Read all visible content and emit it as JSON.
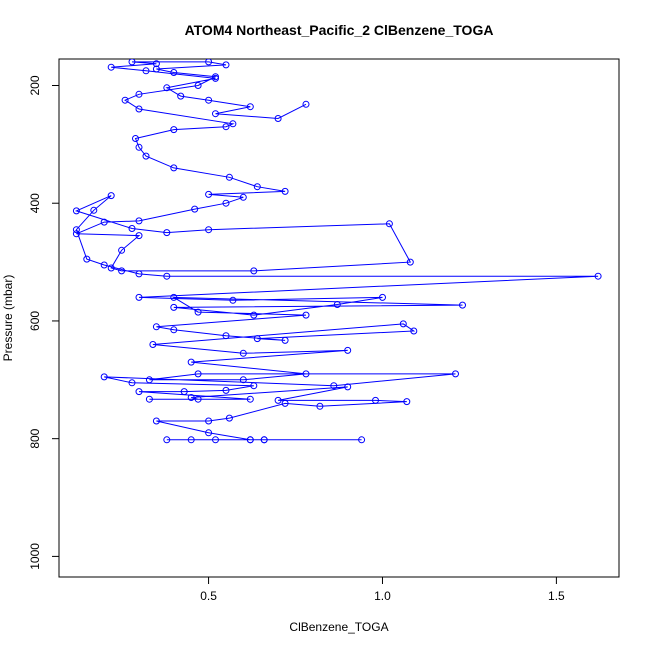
{
  "chart_data": {
    "type": "line",
    "title": "ATOM4 Northeast_Pacific_2 ClBenzene_TOGA",
    "xlabel": "ClBenzene_TOGA",
    "ylabel": "Pressure (mbar)",
    "xlim": [
      0.07,
      1.68
    ],
    "ylim": [
      1035,
      155
    ],
    "y_reversed": true,
    "x_ticks": [
      0.5,
      1.0,
      1.5
    ],
    "x_tick_labels": [
      "0.5",
      "1.0",
      "1.5"
    ],
    "y_ticks": [
      200,
      400,
      600,
      800,
      1000
    ],
    "y_tick_labels": [
      "200",
      "400",
      "600",
      "800",
      "1000"
    ],
    "grid": false,
    "series": [
      {
        "color": "#0000ff",
        "marker": "open-circle",
        "x": [
          0.38,
          0.45,
          0.52,
          0.62,
          0.66,
          0.94,
          0.66,
          0.62,
          0.5,
          0.35,
          0.5,
          0.56,
          0.72,
          0.82,
          1.07,
          0.98,
          0.7,
          0.9,
          0.45,
          0.47,
          0.33,
          0.62,
          0.3,
          0.43,
          0.55,
          0.63,
          0.28,
          0.2,
          0.86,
          1.21,
          0.47,
          0.33,
          0.6,
          0.78,
          0.45,
          0.9,
          0.6,
          0.34,
          1.06,
          1.09,
          0.64,
          0.72,
          0.55,
          0.4,
          0.35,
          0.78,
          0.47,
          0.4,
          1.23,
          0.4,
          0.63,
          0.87,
          1.0,
          0.57,
          0.3,
          1.62,
          0.38,
          0.3,
          0.2,
          0.15,
          0.12,
          0.17,
          0.22,
          0.12,
          0.28,
          0.38,
          0.5,
          1.02,
          1.08,
          0.63,
          0.25,
          0.22,
          0.25,
          0.3,
          0.12,
          0.2,
          0.3,
          0.46,
          0.55,
          0.6,
          0.5,
          0.72,
          0.64,
          0.56,
          0.4,
          0.32,
          0.3,
          0.29,
          0.4,
          0.55,
          0.57,
          0.3,
          0.26,
          0.3,
          0.47,
          0.52,
          0.4,
          0.35,
          0.55,
          0.5,
          0.28,
          0.35,
          0.22,
          0.32,
          0.52,
          0.38,
          0.42,
          0.5,
          0.62,
          0.52,
          0.7,
          0.78
        ],
        "y": [
          802,
          802,
          802,
          802,
          802,
          802,
          802,
          802,
          790,
          770,
          770,
          765,
          740,
          745,
          737,
          735,
          735,
          712,
          730,
          733,
          733,
          733,
          720,
          720,
          718,
          710,
          705,
          695,
          710,
          690,
          690,
          700,
          700,
          690,
          670,
          650,
          655,
          640,
          605,
          617,
          630,
          633,
          625,
          615,
          610,
          590,
          585,
          560,
          573,
          577,
          590,
          572,
          560,
          565,
          560,
          524,
          524,
          520,
          505,
          495,
          445,
          412,
          387,
          413,
          443,
          450,
          445,
          435,
          500,
          515,
          515,
          510,
          480,
          455,
          452,
          432,
          430,
          410,
          400,
          390,
          385,
          380,
          372,
          356,
          340,
          320,
          305,
          290,
          275,
          270,
          265,
          240,
          225,
          215,
          200,
          185,
          178,
          172,
          165,
          160,
          160,
          163,
          169,
          175,
          188,
          204,
          218,
          225,
          236,
          248,
          256,
          232
        ]
      }
    ]
  }
}
